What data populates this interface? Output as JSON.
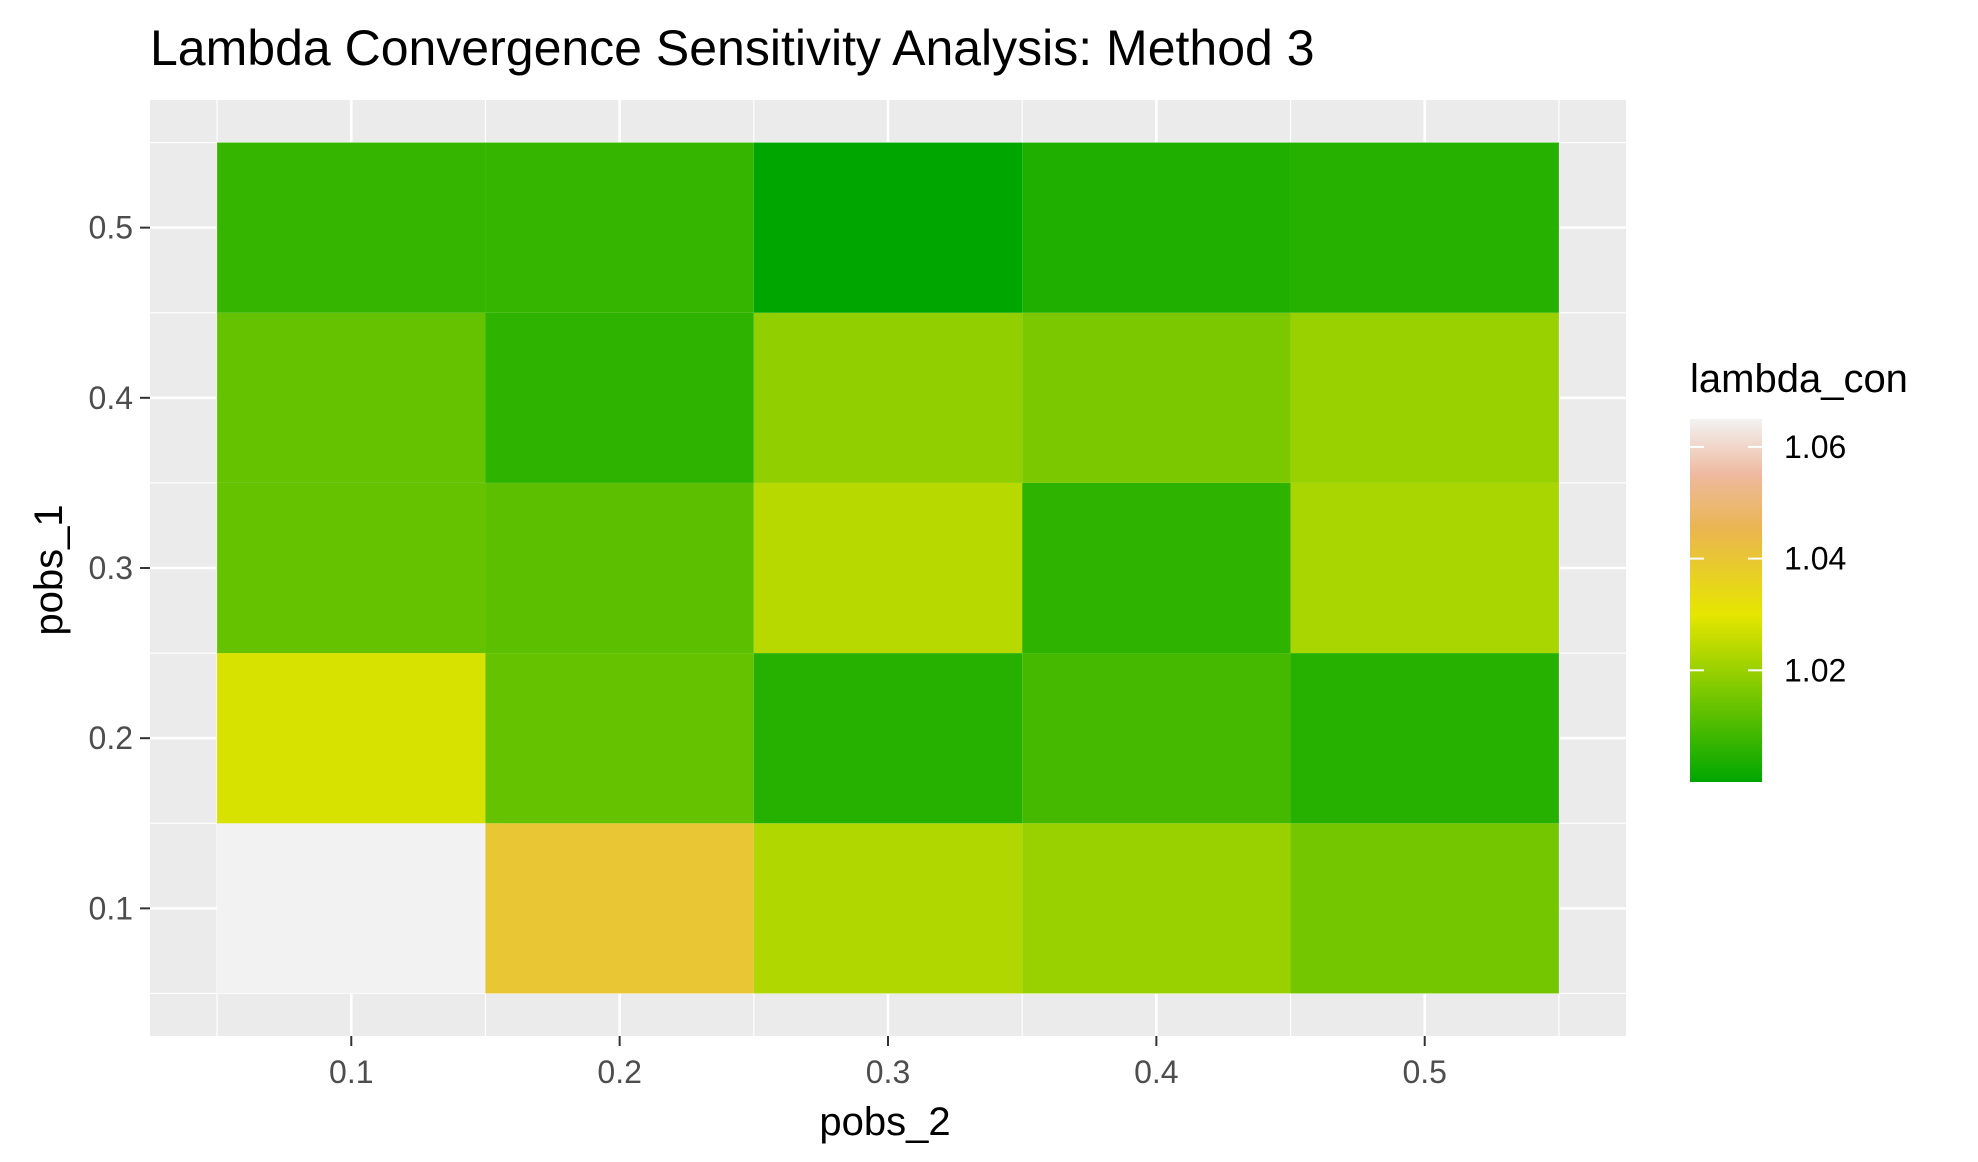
{
  "chart_data": {
    "type": "heatmap",
    "title": "Lambda Convergence Sensitivity Analysis: Method 3",
    "xlabel": "pobs_2",
    "ylabel": "pobs_1",
    "x": [
      0.1,
      0.2,
      0.3,
      0.4,
      0.5
    ],
    "y": [
      0.1,
      0.2,
      0.3,
      0.4,
      0.5
    ],
    "x_tick_labels": [
      "0.1",
      "0.2",
      "0.3",
      "0.4",
      "0.5"
    ],
    "y_tick_labels": [
      "0.1",
      "0.2",
      "0.3",
      "0.4",
      "0.5"
    ],
    "xlim": [
      0.025,
      0.575
    ],
    "ylim": [
      0.025,
      0.575
    ],
    "grid": true,
    "values": [
      [
        1.065,
        1.04,
        1.023,
        1.02,
        1.015
      ],
      [
        1.028,
        1.013,
        1.005,
        1.009,
        1.005
      ],
      [
        1.013,
        1.012,
        1.024,
        1.006,
        1.022
      ],
      [
        1.013,
        1.006,
        1.019,
        1.016,
        1.02
      ],
      [
        1.007,
        1.007,
        1.0,
        1.004,
        1.005
      ]
    ],
    "color_scale": {
      "stops": [
        {
          "value": 1.0,
          "color": "#00A600"
        },
        {
          "value": 1.03,
          "color": "#E6E600"
        },
        {
          "value": 1.045,
          "color": "#EAB64E"
        },
        {
          "value": 1.055,
          "color": "#EEB99F"
        },
        {
          "value": 1.065,
          "color": "#F2F2F2"
        }
      ]
    },
    "legend": {
      "title": "lambda_con",
      "placement": "right",
      "range": [
        1.0,
        1.065
      ],
      "breaks": [
        1.02,
        1.04,
        1.06
      ],
      "break_labels": [
        "1.02",
        "1.04",
        "1.06"
      ]
    },
    "colors": {
      "panel_background": "#EBEBEB",
      "grid_major": "#FFFFFF",
      "tick_label": "#4D4D4D",
      "tick_mark": "#333333"
    }
  }
}
